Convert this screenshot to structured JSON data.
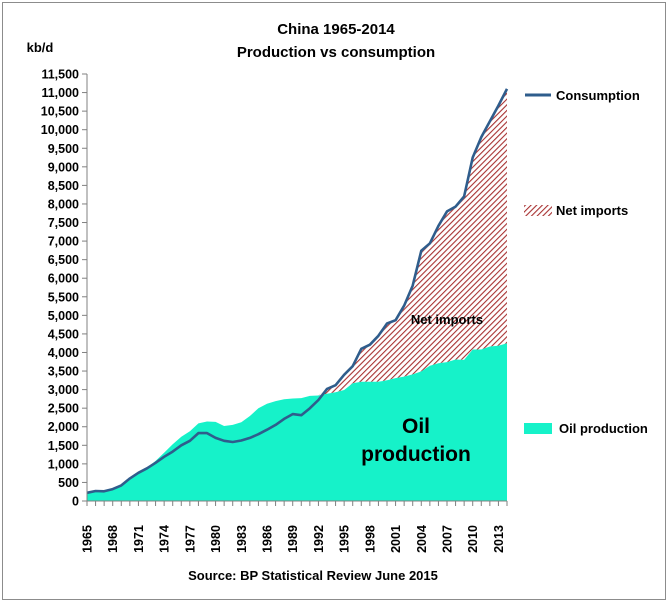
{
  "chart_data": {
    "type": "area",
    "title": "China 1965-2014",
    "subtitle": "Production vs consumption",
    "unit_label": "kb/d",
    "source": "Source: BP Statistical Review  June 2015",
    "x": [
      1965,
      1966,
      1967,
      1968,
      1969,
      1970,
      1971,
      1972,
      1973,
      1974,
      1975,
      1976,
      1977,
      1978,
      1979,
      1980,
      1981,
      1982,
      1983,
      1984,
      1985,
      1986,
      1987,
      1988,
      1989,
      1990,
      1991,
      1992,
      1993,
      1994,
      1995,
      1996,
      1997,
      1998,
      1999,
      2000,
      2001,
      2002,
      2003,
      2004,
      2005,
      2006,
      2007,
      2008,
      2009,
      2010,
      2011,
      2012,
      2013,
      2014
    ],
    "x_tick_labels": [
      "1965",
      "1968",
      "1971",
      "1974",
      "1977",
      "1980",
      "1983",
      "1986",
      "1989",
      "1992",
      "1995",
      "1998",
      "2001",
      "2004",
      "2007",
      "2010",
      "2013"
    ],
    "ylim": [
      0,
      11500
    ],
    "y_tick_step": 500,
    "y_tick_labels": [
      "0",
      "500",
      "1,000",
      "1,500",
      "2,000",
      "2,500",
      "3,000",
      "3,500",
      "4,000",
      "4,500",
      "5,000",
      "5,500",
      "6,000",
      "6,500",
      "7,000",
      "7,500",
      "8,000",
      "8,500",
      "9,000",
      "9,500",
      "10,000",
      "10,500",
      "11,000",
      "11,500"
    ],
    "grid": false,
    "legend_position": "right",
    "series": [
      {
        "name": "Consumption",
        "kind": "line",
        "color": "#2f5d8c",
        "values": [
          220,
          270,
          260,
          320,
          420,
          610,
          760,
          880,
          1030,
          1190,
          1330,
          1500,
          1620,
          1830,
          1830,
          1700,
          1620,
          1590,
          1630,
          1700,
          1800,
          1920,
          2050,
          2210,
          2340,
          2310,
          2500,
          2720,
          3020,
          3120,
          3400,
          3630,
          4100,
          4210,
          4450,
          4780,
          4870,
          5260,
          5800,
          6740,
          6940,
          7410,
          7800,
          7930,
          8200,
          9250,
          9800,
          10230,
          10650,
          11100
        ]
      },
      {
        "name": "Net imports",
        "kind": "hatched-area",
        "color": "#a83232",
        "label": "Net imports"
      },
      {
        "name": "Oil production",
        "kind": "area",
        "color": "#16f2c9",
        "label_line1": "Oil",
        "label_line2": "production",
        "values": [
          230,
          290,
          280,
          300,
          450,
          620,
          790,
          900,
          1080,
          1300,
          1530,
          1730,
          1880,
          2090,
          2140,
          2130,
          2020,
          2050,
          2120,
          2290,
          2500,
          2620,
          2690,
          2740,
          2760,
          2770,
          2830,
          2840,
          2890,
          2930,
          2990,
          3170,
          3210,
          3210,
          3210,
          3250,
          3310,
          3350,
          3410,
          3490,
          3640,
          3710,
          3740,
          3810,
          3800,
          4080,
          4080,
          4160,
          4180,
          4250
        ]
      }
    ]
  }
}
